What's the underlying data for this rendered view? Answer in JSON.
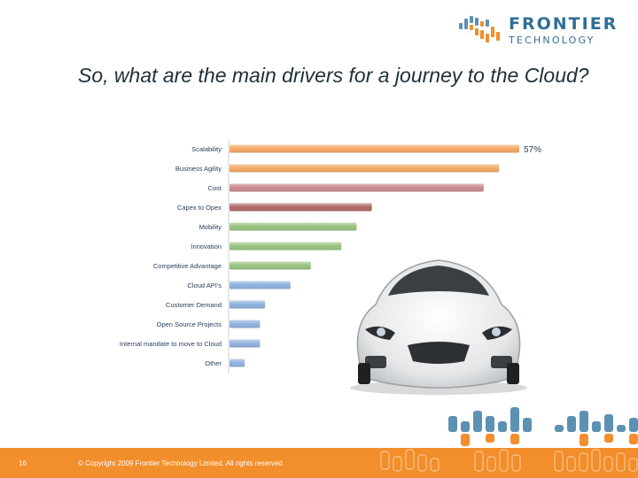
{
  "brand": {
    "line1": "FRONTIER",
    "line2": "TECHNOLOGY",
    "color": "#2f6f94",
    "accent": "#f28e2b"
  },
  "slide": {
    "title": "So, what are the main drivers for a journey to the Cloud?"
  },
  "footer": {
    "page_number": "16",
    "copyright": "© Copyright 2009 Frontier Technology Limited. All rights reserved.",
    "color": "#f28e2b"
  },
  "chart_data": {
    "type": "bar",
    "orientation": "horizontal",
    "categories": [
      "Scalability",
      "Business Agility",
      "Cost",
      "Capex to Opex",
      "Mobility",
      "Innovation",
      "Competitive Advantage",
      "Cloud API's",
      "Customer Demand",
      "Open Source Projects",
      "Internal mandate to move to Cloud",
      "Other"
    ],
    "values": [
      57,
      53,
      50,
      28,
      25,
      22,
      16,
      12,
      7,
      6,
      6,
      3
    ],
    "data_labels": [
      "57%",
      "",
      "",
      "",
      "",
      "",
      "",
      "",
      "",
      "",
      "",
      ""
    ],
    "colors": [
      "#f4a765",
      "#f4a765",
      "#c98a8e",
      "#b06868",
      "#98c27f",
      "#98c27f",
      "#98c27f",
      "#8fb1dc",
      "#8fb1dc",
      "#8fb1dc",
      "#8fb1dc",
      "#8fb1dc"
    ],
    "xlim": [
      0,
      57
    ],
    "grid": false,
    "title": "",
    "xlabel": "",
    "ylabel": ""
  }
}
